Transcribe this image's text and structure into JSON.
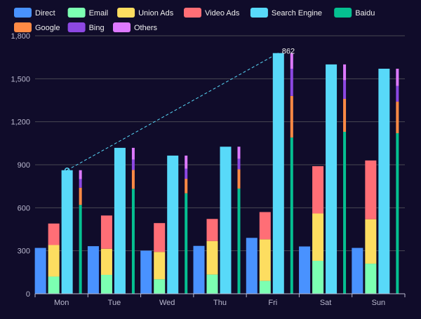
{
  "chart_data": {
    "type": "bar",
    "categories": [
      "Mon",
      "Tue",
      "Wed",
      "Thu",
      "Fri",
      "Sat",
      "Sun"
    ],
    "ylim": [
      0,
      1800
    ],
    "yticks": [
      "0",
      "300",
      "600",
      "900",
      "1,200",
      "1,500",
      "1,800"
    ],
    "grid": true,
    "legend_position": "top-left",
    "groups": [
      {
        "stack": "direct",
        "series": [
          "Direct"
        ]
      },
      {
        "stack": "ads",
        "series": [
          "Email",
          "Union Ads",
          "Video Ads"
        ]
      },
      {
        "stack": "search",
        "series": [
          "Search Engine"
        ]
      },
      {
        "stack": "engines",
        "series": [
          "Baidu",
          "Google",
          "Bing",
          "Others"
        ]
      }
    ],
    "series": [
      {
        "name": "Direct",
        "color": "#4992ff",
        "stack": "direct",
        "values": [
          320,
          332,
          301,
          334,
          390,
          330,
          320
        ]
      },
      {
        "name": "Email",
        "color": "#7cffb2",
        "stack": "ads",
        "values": [
          120,
          132,
          101,
          134,
          90,
          230,
          210
        ]
      },
      {
        "name": "Union Ads",
        "color": "#fddd60",
        "stack": "ads",
        "values": [
          220,
          182,
          191,
          234,
          290,
          330,
          310
        ]
      },
      {
        "name": "Video Ads",
        "color": "#ff6e76",
        "stack": "ads",
        "values": [
          150,
          232,
          201,
          154,
          190,
          330,
          410
        ]
      },
      {
        "name": "Search Engine",
        "color": "#58d9f9",
        "stack": "search",
        "values": [
          862,
          1018,
          964,
          1026,
          1679,
          1600,
          1570
        ]
      },
      {
        "name": "Baidu",
        "color": "#05c091",
        "stack": "engines",
        "values": [
          620,
          732,
          701,
          734,
          1090,
          1130,
          1120
        ]
      },
      {
        "name": "Google",
        "color": "#ff8a45",
        "stack": "engines",
        "values": [
          120,
          132,
          101,
          134,
          290,
          230,
          220
        ]
      },
      {
        "name": "Bing",
        "color": "#8d48e3",
        "stack": "engines",
        "values": [
          60,
          72,
          71,
          74,
          190,
          130,
          110
        ]
      },
      {
        "name": "Others",
        "color": "#dd79ff",
        "stack": "engines",
        "values": [
          62,
          82,
          91,
          84,
          109,
          110,
          120
        ]
      }
    ],
    "annotation": {
      "label": "862",
      "from": {
        "category": "Mon",
        "value": 862
      },
      "to": {
        "category": "Fri",
        "value": 1679
      }
    }
  },
  "theme": {
    "background": "#100c2a",
    "text": "#eeeeee",
    "axis": "#b9b8ce",
    "grid": "#484753",
    "markline": "#58d9f9"
  }
}
